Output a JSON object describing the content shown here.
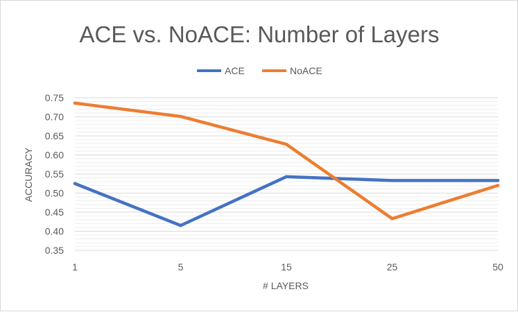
{
  "chart_data": {
    "type": "line",
    "title": "ACE vs. NoACE: Number of Layers",
    "xlabel": "# LAYERS",
    "ylabel": "ACCURACY",
    "categories": [
      "1",
      "5",
      "15",
      "25",
      "50"
    ],
    "series": [
      {
        "name": "ACE",
        "color": "#4472c4",
        "values": [
          0.525,
          0.415,
          0.543,
          0.533,
          0.533
        ]
      },
      {
        "name": "NoACE",
        "color": "#ed7d31",
        "values": [
          0.736,
          0.701,
          0.628,
          0.433,
          0.52
        ]
      }
    ],
    "ylim": [
      0.35,
      0.75
    ],
    "yticks": [
      "0.35",
      "0.40",
      "0.45",
      "0.50",
      "0.55",
      "0.60",
      "0.65",
      "0.70",
      "0.75"
    ],
    "grid": true,
    "legend_position": "top"
  }
}
